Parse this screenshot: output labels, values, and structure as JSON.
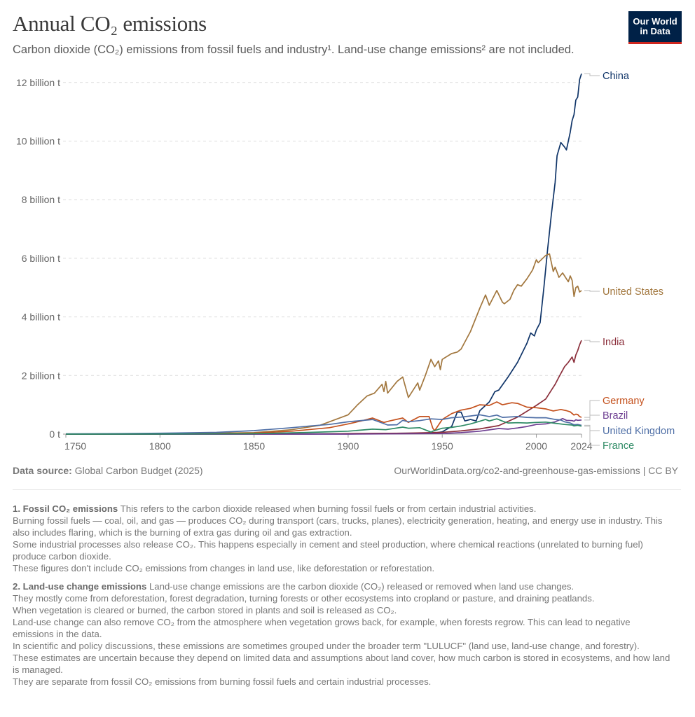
{
  "header": {
    "title": "Annual CO₂ emissions",
    "subtitle": "Carbon dioxide (CO₂) emissions from fossil fuels and industry¹. Land-use change emissions² are not included.",
    "logo_line1": "Our World",
    "logo_line2": "in Data"
  },
  "chart_data": {
    "type": "line",
    "title": "Annual CO₂ emissions",
    "xlim": [
      1750,
      2024
    ],
    "ylim": [
      0,
      12.3
    ],
    "x_ticks": [
      {
        "v": 1750,
        "label": "1750"
      },
      {
        "v": 1800,
        "label": "1800"
      },
      {
        "v": 1850,
        "label": "1850"
      },
      {
        "v": 1900,
        "label": "1900"
      },
      {
        "v": 1950,
        "label": "1950"
      },
      {
        "v": 2000,
        "label": "2000"
      },
      {
        "v": 2024,
        "label": "2024"
      }
    ],
    "y_ticks": [
      {
        "v": 0,
        "label": "0 t"
      },
      {
        "v": 2,
        "label": "2 billion t"
      },
      {
        "v": 4,
        "label": "4 billion t"
      },
      {
        "v": 6,
        "label": "6 billion t"
      },
      {
        "v": 8,
        "label": "8 billion t"
      },
      {
        "v": 10,
        "label": "10 billion t"
      },
      {
        "v": 12,
        "label": "12 billion t"
      }
    ],
    "y_unit": "billion tonnes",
    "grid": "horizontal dashed",
    "legend": "right, line-end labels",
    "series": [
      {
        "name": "China",
        "color": "#0f3468",
        "points": [
          [
            1750,
            0
          ],
          [
            1900,
            0.01
          ],
          [
            1930,
            0.03
          ],
          [
            1945,
            0.03
          ],
          [
            1950,
            0.08
          ],
          [
            1955,
            0.26
          ],
          [
            1958,
            0.75
          ],
          [
            1960,
            0.75
          ],
          [
            1962,
            0.45
          ],
          [
            1965,
            0.5
          ],
          [
            1968,
            0.45
          ],
          [
            1970,
            0.8
          ],
          [
            1975,
            1.1
          ],
          [
            1978,
            1.45
          ],
          [
            1980,
            1.5
          ],
          [
            1985,
            1.95
          ],
          [
            1990,
            2.45
          ],
          [
            1995,
            3.1
          ],
          [
            1997,
            3.45
          ],
          [
            1999,
            3.35
          ],
          [
            2000,
            3.55
          ],
          [
            2002,
            3.8
          ],
          [
            2004,
            5.0
          ],
          [
            2006,
            6.3
          ],
          [
            2008,
            7.5
          ],
          [
            2010,
            8.6
          ],
          [
            2011,
            9.5
          ],
          [
            2013,
            9.95
          ],
          [
            2015,
            9.8
          ],
          [
            2016,
            9.7
          ],
          [
            2018,
            10.3
          ],
          [
            2019,
            10.7
          ],
          [
            2020,
            10.9
          ],
          [
            2021,
            11.4
          ],
          [
            2022,
            11.5
          ],
          [
            2023,
            12.1
          ],
          [
            2024,
            12.3
          ]
        ]
      },
      {
        "name": "United States",
        "color": "#a2773e",
        "points": [
          [
            1750,
            0
          ],
          [
            1800,
            0.002
          ],
          [
            1850,
            0.05
          ],
          [
            1870,
            0.15
          ],
          [
            1885,
            0.3
          ],
          [
            1900,
            0.66
          ],
          [
            1905,
            1.0
          ],
          [
            1910,
            1.3
          ],
          [
            1914,
            1.4
          ],
          [
            1918,
            1.7
          ],
          [
            1919,
            1.45
          ],
          [
            1920,
            1.8
          ],
          [
            1921,
            1.4
          ],
          [
            1926,
            1.8
          ],
          [
            1929,
            1.95
          ],
          [
            1932,
            1.25
          ],
          [
            1937,
            1.75
          ],
          [
            1938,
            1.5
          ],
          [
            1941,
            2.0
          ],
          [
            1944,
            2.55
          ],
          [
            1946,
            2.3
          ],
          [
            1948,
            2.5
          ],
          [
            1949,
            2.2
          ],
          [
            1950,
            2.55
          ],
          [
            1955,
            2.75
          ],
          [
            1958,
            2.8
          ],
          [
            1960,
            2.9
          ],
          [
            1965,
            3.5
          ],
          [
            1970,
            4.3
          ],
          [
            1973,
            4.75
          ],
          [
            1975,
            4.4
          ],
          [
            1979,
            4.9
          ],
          [
            1982,
            4.5
          ],
          [
            1983,
            4.45
          ],
          [
            1986,
            4.6
          ],
          [
            1988,
            4.9
          ],
          [
            1990,
            5.1
          ],
          [
            1992,
            5.05
          ],
          [
            1995,
            5.3
          ],
          [
            1998,
            5.6
          ],
          [
            2000,
            5.95
          ],
          [
            2001,
            5.85
          ],
          [
            2005,
            6.1
          ],
          [
            2007,
            6.15
          ],
          [
            2009,
            5.55
          ],
          [
            2010,
            5.7
          ],
          [
            2012,
            5.35
          ],
          [
            2014,
            5.5
          ],
          [
            2015,
            5.4
          ],
          [
            2017,
            5.2
          ],
          [
            2018,
            5.4
          ],
          [
            2019,
            5.25
          ],
          [
            2020,
            4.7
          ],
          [
            2021,
            5.0
          ],
          [
            2022,
            5.05
          ],
          [
            2023,
            4.85
          ],
          [
            2024,
            4.9
          ]
        ]
      },
      {
        "name": "India",
        "color": "#8b2f3b",
        "points": [
          [
            1750,
            0
          ],
          [
            1880,
            0.005
          ],
          [
            1900,
            0.02
          ],
          [
            1930,
            0.03
          ],
          [
            1950,
            0.06
          ],
          [
            1960,
            0.11
          ],
          [
            1970,
            0.18
          ],
          [
            1980,
            0.29
          ],
          [
            1990,
            0.58
          ],
          [
            1995,
            0.78
          ],
          [
            2000,
            0.98
          ],
          [
            2005,
            1.2
          ],
          [
            2008,
            1.5
          ],
          [
            2010,
            1.7
          ],
          [
            2012,
            1.95
          ],
          [
            2015,
            2.3
          ],
          [
            2017,
            2.45
          ],
          [
            2019,
            2.63
          ],
          [
            2020,
            2.45
          ],
          [
            2021,
            2.7
          ],
          [
            2022,
            2.85
          ],
          [
            2023,
            3.05
          ],
          [
            2024,
            3.2
          ]
        ]
      },
      {
        "name": "Germany",
        "color": "#c4511d",
        "points": [
          [
            1750,
            0
          ],
          [
            1800,
            0.01
          ],
          [
            1850,
            0.03
          ],
          [
            1870,
            0.1
          ],
          [
            1890,
            0.22
          ],
          [
            1900,
            0.35
          ],
          [
            1907,
            0.45
          ],
          [
            1913,
            0.55
          ],
          [
            1919,
            0.4
          ],
          [
            1922,
            0.45
          ],
          [
            1929,
            0.55
          ],
          [
            1932,
            0.4
          ],
          [
            1938,
            0.6
          ],
          [
            1940,
            0.6
          ],
          [
            1943,
            0.6
          ],
          [
            1945,
            0.2
          ],
          [
            1946,
            0.12
          ],
          [
            1950,
            0.5
          ],
          [
            1955,
            0.7
          ],
          [
            1960,
            0.82
          ],
          [
            1965,
            0.88
          ],
          [
            1970,
            1.0
          ],
          [
            1975,
            0.98
          ],
          [
            1979,
            1.1
          ],
          [
            1982,
            1.0
          ],
          [
            1987,
            1.07
          ],
          [
            1990,
            1.05
          ],
          [
            1995,
            0.92
          ],
          [
            2000,
            0.9
          ],
          [
            2005,
            0.86
          ],
          [
            2009,
            0.79
          ],
          [
            2013,
            0.84
          ],
          [
            2016,
            0.8
          ],
          [
            2018,
            0.76
          ],
          [
            2020,
            0.65
          ],
          [
            2021,
            0.68
          ],
          [
            2022,
            0.67
          ],
          [
            2023,
            0.6
          ],
          [
            2024,
            0.57
          ]
        ]
      },
      {
        "name": "Brazil",
        "color": "#6d3e91",
        "points": [
          [
            1750,
            0
          ],
          [
            1900,
            0.001
          ],
          [
            1950,
            0.02
          ],
          [
            1960,
            0.05
          ],
          [
            1970,
            0.1
          ],
          [
            1980,
            0.19
          ],
          [
            1985,
            0.17
          ],
          [
            1990,
            0.21
          ],
          [
            1995,
            0.26
          ],
          [
            2000,
            0.33
          ],
          [
            2005,
            0.35
          ],
          [
            2010,
            0.42
          ],
          [
            2014,
            0.53
          ],
          [
            2016,
            0.47
          ],
          [
            2019,
            0.46
          ],
          [
            2020,
            0.44
          ],
          [
            2021,
            0.49
          ],
          [
            2022,
            0.47
          ],
          [
            2024,
            0.48
          ]
        ]
      },
      {
        "name": "United Kingdom",
        "color": "#4f6fa6",
        "points": [
          [
            1750,
            0.01
          ],
          [
            1780,
            0.02
          ],
          [
            1800,
            0.03
          ],
          [
            1830,
            0.06
          ],
          [
            1850,
            0.12
          ],
          [
            1870,
            0.22
          ],
          [
            1880,
            0.28
          ],
          [
            1890,
            0.33
          ],
          [
            1900,
            0.42
          ],
          [
            1913,
            0.5
          ],
          [
            1921,
            0.31
          ],
          [
            1926,
            0.32
          ],
          [
            1929,
            0.47
          ],
          [
            1932,
            0.42
          ],
          [
            1938,
            0.46
          ],
          [
            1944,
            0.52
          ],
          [
            1950,
            0.5
          ],
          [
            1955,
            0.56
          ],
          [
            1960,
            0.58
          ],
          [
            1965,
            0.62
          ],
          [
            1970,
            0.66
          ],
          [
            1975,
            0.6
          ],
          [
            1979,
            0.65
          ],
          [
            1982,
            0.57
          ],
          [
            1990,
            0.6
          ],
          [
            1995,
            0.57
          ],
          [
            2000,
            0.56
          ],
          [
            2005,
            0.56
          ],
          [
            2010,
            0.5
          ],
          [
            2013,
            0.48
          ],
          [
            2015,
            0.42
          ],
          [
            2018,
            0.38
          ],
          [
            2020,
            0.32
          ],
          [
            2022,
            0.33
          ],
          [
            2024,
            0.3
          ]
        ]
      },
      {
        "name": "France",
        "color": "#2d8a64",
        "points": [
          [
            1750,
            0
          ],
          [
            1800,
            0.003
          ],
          [
            1850,
            0.015
          ],
          [
            1880,
            0.06
          ],
          [
            1900,
            0.1
          ],
          [
            1913,
            0.17
          ],
          [
            1920,
            0.15
          ],
          [
            1929,
            0.24
          ],
          [
            1932,
            0.2
          ],
          [
            1938,
            0.22
          ],
          [
            1944,
            0.07
          ],
          [
            1945,
            0.1
          ],
          [
            1950,
            0.2
          ],
          [
            1955,
            0.23
          ],
          [
            1960,
            0.28
          ],
          [
            1965,
            0.35
          ],
          [
            1970,
            0.44
          ],
          [
            1973,
            0.5
          ],
          [
            1975,
            0.45
          ],
          [
            1979,
            0.52
          ],
          [
            1983,
            0.42
          ],
          [
            1985,
            0.38
          ],
          [
            1990,
            0.39
          ],
          [
            1995,
            0.38
          ],
          [
            2000,
            0.4
          ],
          [
            2005,
            0.41
          ],
          [
            2010,
            0.37
          ],
          [
            2015,
            0.33
          ],
          [
            2019,
            0.31
          ],
          [
            2020,
            0.28
          ],
          [
            2022,
            0.3
          ],
          [
            2024,
            0.27
          ]
        ]
      }
    ]
  },
  "footer": {
    "source_label": "Data source:",
    "source_value": "Global Carbon Budget (2025)",
    "credit": "OurWorldinData.org/co2-and-greenhouse-gas-emissions | CC BY"
  },
  "notes": [
    {
      "heading": "1. Fossil CO₂ emissions",
      "lines": [
        "This refers to the carbon dioxide released when burning fossil fuels or from certain industrial activities.",
        "Burning fossil fuels — coal, oil, and gas — produces CO₂ during transport (cars, trucks, planes), electricity generation, heating, and energy use in industry. This also includes flaring, which is the burning of extra gas during oil and gas extraction.",
        "Some industrial processes also release CO₂. This happens especially in cement and steel production, where chemical reactions (unrelated to burning fuel) produce carbon dioxide.",
        "These figures don't include CO₂ emissions from changes in land use, like deforestation or reforestation."
      ]
    },
    {
      "heading": "2. Land-use change emissions",
      "lines": [
        "Land-use change emissions are the carbon dioxide (CO₂) released or removed when land use changes.",
        "They mostly come from deforestation, forest degradation, turning forests or other ecosystems into cropland or pasture, and draining peatlands.",
        "When vegetation is cleared or burned, the carbon stored in plants and soil is released as CO₂.",
        "Land-use change can also remove CO₂ from the atmosphere when vegetation grows back, for example, when forests regrow. This can lead to negative emissions in the data.",
        "In scientific and policy discussions, these emissions are sometimes grouped under the broader term \"LULUCF\" (land use, land-use change, and forestry).",
        "These estimates are uncertain because they depend on limited data and assumptions about land cover, how much carbon is stored in ecosystems, and how land is managed.",
        "They are separate from fossil CO₂ emissions from burning fossil fuels and certain industrial processes."
      ]
    }
  ]
}
